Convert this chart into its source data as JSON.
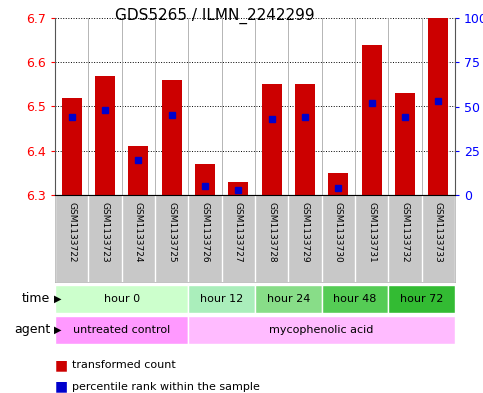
{
  "title": "GDS5265 / ILMN_2242299",
  "samples": [
    "GSM1133722",
    "GSM1133723",
    "GSM1133724",
    "GSM1133725",
    "GSM1133726",
    "GSM1133727",
    "GSM1133728",
    "GSM1133729",
    "GSM1133730",
    "GSM1133731",
    "GSM1133732",
    "GSM1133733"
  ],
  "transformed_count": [
    6.52,
    6.57,
    6.41,
    6.56,
    6.37,
    6.33,
    6.55,
    6.55,
    6.35,
    6.64,
    6.53,
    6.7
  ],
  "percentile_rank": [
    44,
    48,
    20,
    45,
    5,
    3,
    43,
    44,
    4,
    52,
    44,
    53
  ],
  "ymin": 6.3,
  "ymax": 6.7,
  "yticks": [
    6.3,
    6.4,
    6.5,
    6.6,
    6.7
  ],
  "right_yticks": [
    0,
    25,
    50,
    75,
    100
  ],
  "bar_color": "#cc0000",
  "percentile_color": "#0000cc",
  "time_groups": [
    {
      "label": "hour 0",
      "start": 0,
      "end": 4,
      "color": "#ccffcc"
    },
    {
      "label": "hour 12",
      "start": 4,
      "end": 6,
      "color": "#aaeebb"
    },
    {
      "label": "hour 24",
      "start": 6,
      "end": 8,
      "color": "#88dd88"
    },
    {
      "label": "hour 48",
      "start": 8,
      "end": 10,
      "color": "#55cc55"
    },
    {
      "label": "hour 72",
      "start": 10,
      "end": 12,
      "color": "#33bb33"
    }
  ],
  "agent_untreated_color": "#ff99ff",
  "agent_myco_color": "#ffbbff",
  "xlabels_bg": "#c8c8c8",
  "legend_red": "transformed count",
  "legend_blue": "percentile rank within the sample"
}
